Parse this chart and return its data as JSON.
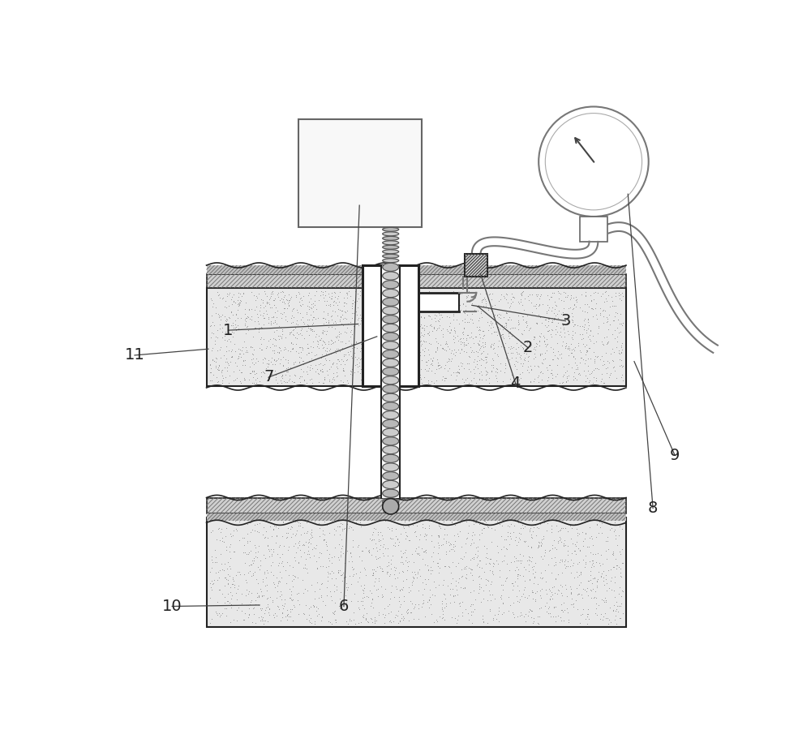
{
  "bg_color": "#ffffff",
  "lc": "#555555",
  "dc": "#222222",
  "gray_fill": "#e0e0e0",
  "white": "#ffffff",
  "hatch_gray": "#999999",
  "label_color": "#333333",
  "figsize": [
    10.0,
    9.16
  ],
  "dpi": 100
}
